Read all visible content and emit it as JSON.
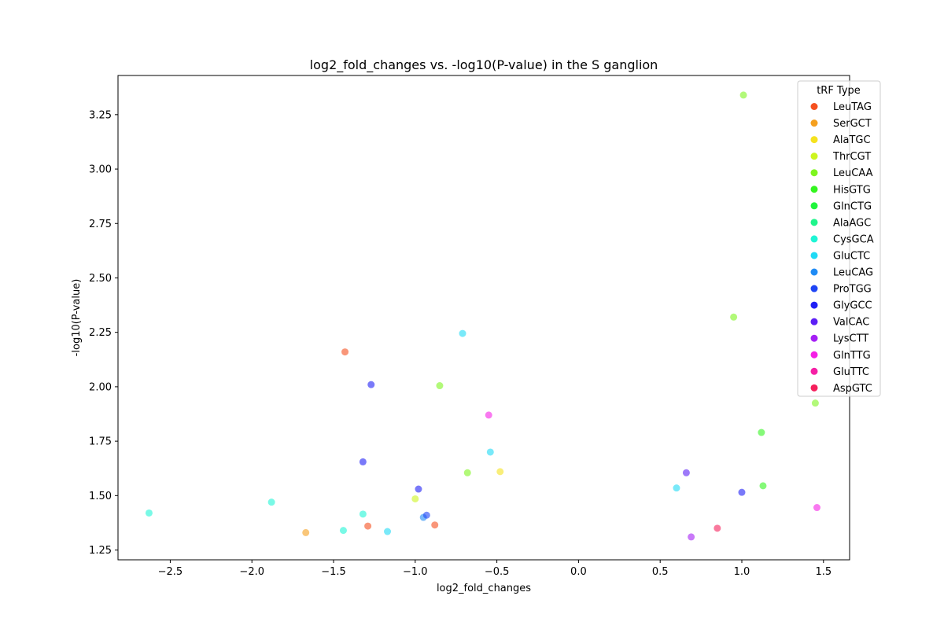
{
  "chart_data": {
    "type": "scatter",
    "title": "log2_fold_changes vs. -log10(P-value) in the S ganglion",
    "xlabel": "log2_fold_changes",
    "ylabel": "-log10(P-value)",
    "xlim": [
      -2.82,
      1.66
    ],
    "ylim": [
      1.205,
      3.43
    ],
    "xticks": [
      -2.5,
      -2.0,
      -1.5,
      -1.0,
      -0.5,
      0.0,
      0.5,
      1.0,
      1.5
    ],
    "xtick_labels": [
      "−2.5",
      "−2.0",
      "−1.5",
      "−1.0",
      "−0.5",
      "0.0",
      "0.5",
      "1.0",
      "1.5"
    ],
    "yticks": [
      1.25,
      1.5,
      1.75,
      2.0,
      2.25,
      2.5,
      2.75,
      3.0,
      3.25
    ],
    "ytick_labels": [
      "1.25",
      "1.50",
      "1.75",
      "2.00",
      "2.25",
      "2.50",
      "2.75",
      "3.00",
      "3.25"
    ],
    "grid": false,
    "legend": {
      "title": "tRF Type",
      "placement": "top-right",
      "entries": [
        {
          "name": "LeuTAG",
          "color": "#f5501f"
        },
        {
          "name": "SerGCT",
          "color": "#f5a01f"
        },
        {
          "name": "AlaTGC",
          "color": "#f5e21f"
        },
        {
          "name": "ThrCGT",
          "color": "#cdf51f"
        },
        {
          "name": "LeuCAA",
          "color": "#7ef51f"
        },
        {
          "name": "HisGTG",
          "color": "#34f51f"
        },
        {
          "name": "GlnCTG",
          "color": "#1ff53c"
        },
        {
          "name": "AlaAGC",
          "color": "#1ff58b"
        },
        {
          "name": "CysGCA",
          "color": "#1ff5d5"
        },
        {
          "name": "GluCTC",
          "color": "#1fdaf5"
        },
        {
          "name": "LeuCAG",
          "color": "#1f8bf5"
        },
        {
          "name": "ProTGG",
          "color": "#1f45f5"
        },
        {
          "name": "GlyGCC",
          "color": "#1f1ff5"
        },
        {
          "name": "ValCAC",
          "color": "#5c1ff5"
        },
        {
          "name": "LysCTT",
          "color": "#a51ff5"
        },
        {
          "name": "GlnTTG",
          "color": "#f51fe6"
        },
        {
          "name": "GluTTC",
          "color": "#f51fa5"
        },
        {
          "name": "AspGTC",
          "color": "#f51f5c"
        }
      ]
    },
    "points": [
      {
        "x": 1.01,
        "y": 3.34,
        "color": "#7ef51f"
      },
      {
        "x": 0.95,
        "y": 2.32,
        "color": "#7ef51f"
      },
      {
        "x": 1.45,
        "y": 1.925,
        "color": "#7ef51f"
      },
      {
        "x": 1.12,
        "y": 1.79,
        "color": "#34f51f"
      },
      {
        "x": 1.13,
        "y": 1.545,
        "color": "#34f51f"
      },
      {
        "x": -1.43,
        "y": 2.16,
        "color": "#f5501f"
      },
      {
        "x": -1.29,
        "y": 1.36,
        "color": "#f5501f"
      },
      {
        "x": -0.88,
        "y": 1.365,
        "color": "#f5501f"
      },
      {
        "x": -1.67,
        "y": 1.33,
        "color": "#f5a01f"
      },
      {
        "x": -0.48,
        "y": 1.61,
        "color": "#f5e21f"
      },
      {
        "x": -1.0,
        "y": 1.485,
        "color": "#cdf51f"
      },
      {
        "x": -0.85,
        "y": 2.005,
        "color": "#7ef51f"
      },
      {
        "x": -0.68,
        "y": 1.605,
        "color": "#7ef51f"
      },
      {
        "x": -2.63,
        "y": 1.42,
        "color": "#1ff5d5"
      },
      {
        "x": -1.88,
        "y": 1.47,
        "color": "#1ff5d5"
      },
      {
        "x": -1.32,
        "y": 1.415,
        "color": "#1ff5d5"
      },
      {
        "x": -1.44,
        "y": 1.34,
        "color": "#1ff5d5"
      },
      {
        "x": -0.71,
        "y": 2.245,
        "color": "#1fdaf5"
      },
      {
        "x": -0.54,
        "y": 1.7,
        "color": "#1fdaf5"
      },
      {
        "x": -1.17,
        "y": 1.335,
        "color": "#1fdaf5"
      },
      {
        "x": 0.6,
        "y": 1.535,
        "color": "#1fdaf5"
      },
      {
        "x": -0.95,
        "y": 1.4,
        "color": "#1f8bf5"
      },
      {
        "x": -0.93,
        "y": 1.41,
        "color": "#1f45f5"
      },
      {
        "x": -1.27,
        "y": 2.01,
        "color": "#1f1ff5"
      },
      {
        "x": -1.32,
        "y": 1.655,
        "color": "#1f1ff5"
      },
      {
        "x": -0.98,
        "y": 1.53,
        "color": "#1f1ff5"
      },
      {
        "x": 1.0,
        "y": 1.515,
        "color": "#1f1ff5"
      },
      {
        "x": 0.66,
        "y": 1.605,
        "color": "#5c1ff5"
      },
      {
        "x": 0.69,
        "y": 1.31,
        "color": "#a51ff5"
      },
      {
        "x": -0.55,
        "y": 1.87,
        "color": "#f51fe6"
      },
      {
        "x": 1.46,
        "y": 1.445,
        "color": "#f51fe6"
      },
      {
        "x": 0.85,
        "y": 1.35,
        "color": "#f51f5c"
      }
    ]
  }
}
